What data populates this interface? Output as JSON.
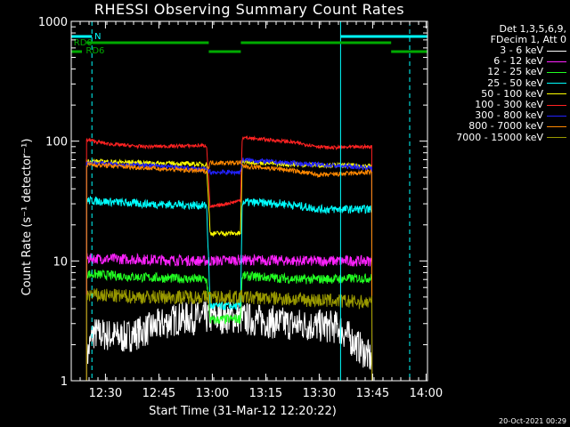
{
  "title": "RHESSI Observing Summary Count Rates",
  "timestamp": "20-Oct-2021 00:29",
  "legend": {
    "header_line1": "Det 1,3,5,6,9,",
    "header_line2": "FDecim 1, Att 0",
    "entries": [
      {
        "label": "3 - 6 keV",
        "color": "#ffffff"
      },
      {
        "label": "6 - 12 keV",
        "color": "#ff22ff"
      },
      {
        "label": "12 - 25 keV",
        "color": "#22ff22"
      },
      {
        "label": "25 - 50 keV",
        "color": "#00ffff"
      },
      {
        "label": "50 - 100 keV",
        "color": "#ffff00"
      },
      {
        "label": "100 - 300 keV",
        "color": "#ff2222"
      },
      {
        "label": "300 - 800 keV",
        "color": "#2222ff"
      },
      {
        "label": "800 - 7000 keV",
        "color": "#ff8800"
      },
      {
        "label": "7000 - 15000 keV",
        "color": "#999900"
      }
    ]
  },
  "chart_data": {
    "type": "line",
    "title": "RHESSI Observing Summary Count Rates",
    "xlabel": "Start Time (31-Mar-12 12:20:22)",
    "ylabel": "Count Rate (s⁻¹ detector⁻¹)",
    "yscale": "log",
    "ylim": [
      1,
      1000
    ],
    "xlim_minutes": [
      0,
      100
    ],
    "x_ticks": [
      {
        "label": "12:30",
        "t": 9.6
      },
      {
        "label": "12:45",
        "t": 24.6
      },
      {
        "label": "13:00",
        "t": 39.6
      },
      {
        "label": "13:15",
        "t": 54.6
      },
      {
        "label": "13:30",
        "t": 69.6
      },
      {
        "label": "13:45",
        "t": 84.6
      },
      {
        "label": "14:00",
        "t": 99.6
      }
    ],
    "y_ticks": [
      {
        "label": "1",
        "v": 1
      },
      {
        "label": "10",
        "v": 10
      },
      {
        "label": "100",
        "v": 100
      },
      {
        "label": "1000",
        "v": 1000
      }
    ],
    "data_interval_minutes": [
      4.3,
      84.4
    ],
    "gap_interval_minutes": [
      38.6,
      47.8
    ],
    "series": [
      {
        "name": "3 - 6 keV",
        "color": "#ffffff",
        "values": [
          [
            4.3,
            1.5
          ],
          [
            6,
            2.5
          ],
          [
            15,
            2.3
          ],
          [
            30,
            3.3
          ],
          [
            45,
            3.4
          ],
          [
            60,
            3.0
          ],
          [
            75,
            2.8
          ],
          [
            84.4,
            1.5
          ]
        ]
      },
      {
        "name": "6 - 12 keV",
        "color": "#ff22ff",
        "values": [
          [
            4.3,
            10.5
          ],
          [
            20,
            10.3
          ],
          [
            38,
            10.0
          ],
          [
            48,
            10.2
          ],
          [
            65,
            10.0
          ],
          [
            84.4,
            10.0
          ]
        ]
      },
      {
        "name": "12 - 25 keV",
        "color": "#22ff22",
        "values": [
          [
            4.3,
            7.8
          ],
          [
            20,
            7.3
          ],
          [
            38,
            7.0
          ],
          [
            39,
            3.2
          ],
          [
            47.5,
            3.3
          ],
          [
            48,
            7.5
          ],
          [
            65,
            7.0
          ],
          [
            84.4,
            7.2
          ]
        ]
      },
      {
        "name": "25 - 50 keV",
        "color": "#00ffff",
        "values": [
          [
            4.3,
            32
          ],
          [
            20,
            30
          ],
          [
            38,
            29
          ],
          [
            39,
            4.2
          ],
          [
            47.5,
            4.2
          ],
          [
            48,
            31
          ],
          [
            60,
            30
          ],
          [
            70,
            27
          ],
          [
            84.4,
            27
          ]
        ]
      },
      {
        "name": "50 - 100 keV",
        "color": "#ffff00",
        "values": [
          [
            4.3,
            68
          ],
          [
            20,
            66
          ],
          [
            38,
            64
          ],
          [
            39,
            17
          ],
          [
            47.5,
            17
          ],
          [
            48,
            68
          ],
          [
            60,
            64
          ],
          [
            84.4,
            62
          ]
        ]
      },
      {
        "name": "100 - 300 keV",
        "color": "#ff2222",
        "values": [
          [
            4.3,
            103
          ],
          [
            10,
            95
          ],
          [
            20,
            90
          ],
          [
            38,
            92
          ],
          [
            39,
            28
          ],
          [
            47.5,
            32
          ],
          [
            48,
            107
          ],
          [
            60,
            100
          ],
          [
            72,
            88
          ],
          [
            84.4,
            90
          ]
        ]
      },
      {
        "name": "300 - 800 keV",
        "color": "#2222ff",
        "values": [
          [
            4.3,
            66
          ],
          [
            20,
            63
          ],
          [
            38,
            58
          ],
          [
            39,
            55
          ],
          [
            47.5,
            55
          ],
          [
            48,
            70
          ],
          [
            60,
            66
          ],
          [
            84.4,
            60
          ]
        ]
      },
      {
        "name": "800 - 7000 keV",
        "color": "#ff8800",
        "values": [
          [
            4.3,
            64
          ],
          [
            20,
            60
          ],
          [
            38,
            56
          ],
          [
            39,
            66
          ],
          [
            47.5,
            66
          ],
          [
            48,
            62
          ],
          [
            60,
            58
          ],
          [
            70,
            52
          ],
          [
            84.4,
            55
          ]
        ]
      },
      {
        "name": "7000 - 15000 keV",
        "color": "#999900",
        "values": [
          [
            4.3,
            5.2
          ],
          [
            20,
            5.0
          ],
          [
            38,
            5.0
          ],
          [
            48,
            5.0
          ],
          [
            84.4,
            4.5
          ]
        ]
      }
    ],
    "annotations": [
      {
        "text": "N",
        "color": "#00ffff",
        "t": 6.5
      },
      {
        "text": "RD0",
        "color": "#00aa00",
        "t": 0.7
      },
      {
        "text": "RD6",
        "color": "#00aa00",
        "t": 4.1
      }
    ],
    "cyan_solid_lines_t": [
      0,
      75.6
    ],
    "cyan_dashed_lines_t": [
      5.8,
      95.0
    ],
    "night_intervals_t": [
      [
        0,
        5.8
      ],
      [
        75.6,
        100
      ]
    ],
    "rd0_intervals_t": [
      [
        4.3,
        38.6
      ],
      [
        47.6,
        89.8
      ]
    ],
    "rd6_intervals_t": [
      [
        0,
        3.0
      ],
      [
        38.6,
        47.6
      ],
      [
        89.8,
        100
      ]
    ]
  }
}
